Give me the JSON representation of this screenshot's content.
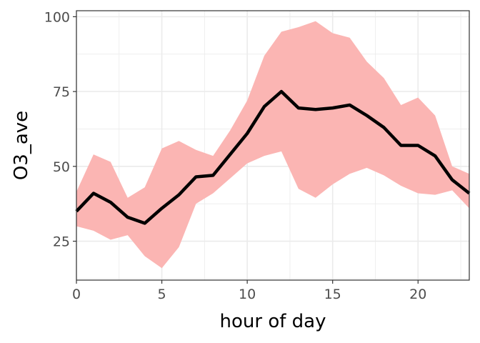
{
  "chart_data": {
    "type": "line",
    "xlabel": "hour of day",
    "ylabel": "O3_ave",
    "xlim": [
      0,
      23
    ],
    "ylim": [
      12,
      102
    ],
    "x_ticks": [
      0,
      5,
      10,
      15,
      20
    ],
    "y_ticks": [
      25,
      50,
      75,
      100
    ],
    "x_tick_labels": [
      "0",
      "5",
      "10",
      "15",
      "20"
    ],
    "y_tick_labels": [
      "25",
      "50",
      "75",
      "100"
    ],
    "grid": true,
    "legend": "none",
    "x": [
      0,
      1,
      2,
      3,
      4,
      5,
      6,
      7,
      8,
      9,
      10,
      11,
      12,
      13,
      14,
      15,
      16,
      17,
      18,
      19,
      20,
      21,
      22,
      23
    ],
    "series": [
      {
        "kind": "line",
        "color": "#000000",
        "values": [
          35,
          41,
          38,
          33,
          31,
          36,
          40.5,
          46.5,
          47,
          54,
          61,
          70,
          75,
          69.5,
          69,
          69.5,
          70.5,
          67,
          63,
          57,
          57,
          53.5,
          45.5,
          41
        ]
      },
      {
        "kind": "ribbon",
        "color": "#fbb5b3",
        "lower": [
          30,
          28.5,
          25.5,
          27,
          20,
          16,
          23,
          37.5,
          41,
          46,
          51,
          53.5,
          55,
          42.5,
          39.5,
          44,
          47.5,
          49.5,
          47,
          43.5,
          41,
          40.5,
          42,
          36
        ],
        "upper": [
          41.5,
          54,
          51.5,
          39.5,
          43,
          56,
          58.5,
          55.5,
          53.5,
          62,
          72,
          87,
          95,
          96.5,
          98.5,
          94.5,
          93,
          85,
          79.5,
          70.5,
          73,
          67,
          50,
          47.5
        ]
      }
    ]
  }
}
